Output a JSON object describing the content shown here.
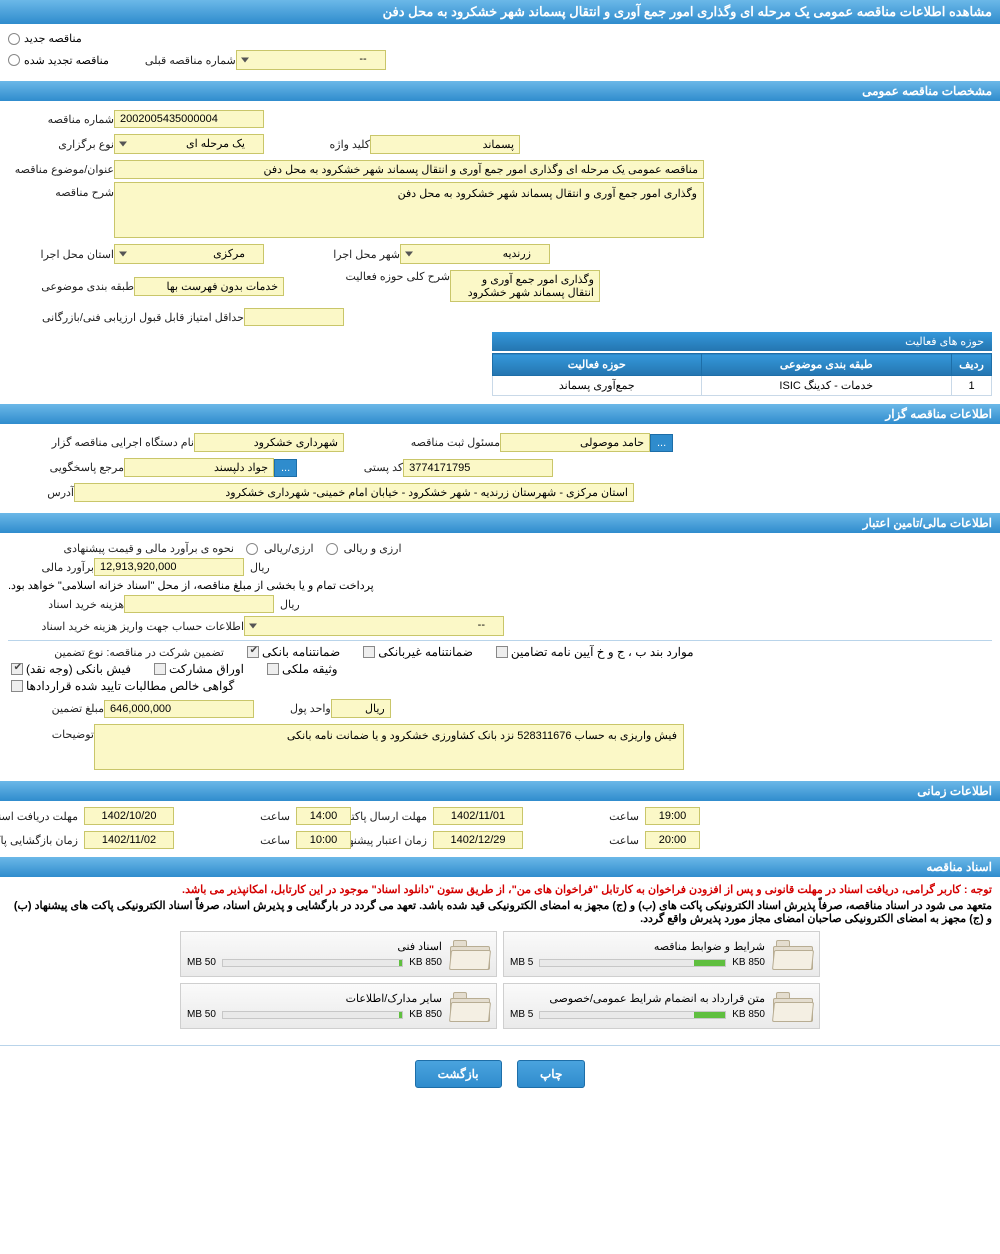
{
  "header": {
    "page_title": "مشاهده اطلاعات مناقصه عمومی یک مرحله ای وگذاری امور جمع آوری و انتقال پسماند شهر خشکرود به محل دفن"
  },
  "radios": {
    "new_tender": "مناقصه جدید",
    "renewed_tender": "مناقصه تجدید شده",
    "prev_number_label": "شماره مناقصه قبلی",
    "prev_number_value": "--"
  },
  "general": {
    "section_title": "مشخصات مناقصه عمومی",
    "tender_no_label": "شماره مناقصه",
    "tender_no": "2002005435000004",
    "type_label": "نوع برگزاری",
    "type_value": "یک مرحله ای",
    "keyword_label": "کلید واژه",
    "keyword_value": "پسماند",
    "subject_label": "عنوان/موضوع مناقصه",
    "subject_value": "مناقصه عمومی یک مرحله ای وگذاری امور جمع آوری و انتقال پسماند شهر خشکرود به محل دفن",
    "desc_label": "شرح مناقصه",
    "desc_value": "وگذاری امور جمع آوری و انتقال پسماند شهر خشکرود به محل دفن",
    "province_label": "استان محل اجرا",
    "province_value": "مرکزی",
    "city_label": "شهر محل اجرا",
    "city_value": "زرندیه",
    "category_label": "طبقه بندی موضوعی",
    "category_value": "خدمات بدون فهرست بها",
    "scope_desc_label": "شرح کلی حوزه فعالیت",
    "scope_desc_value": "وگذاری امور جمع آوری و انتقال پسماند شهر خشکرود",
    "min_score_label": "حداقل امتیاز قابل قبول ارزیابی فنی/بازرگانی",
    "activity_table": {
      "caption": "حوزه های فعالیت",
      "col_row": "ردیف",
      "col_cat": "طبقه بندی موضوعی",
      "col_scope": "حوزه فعالیت",
      "rows": [
        {
          "n": "1",
          "cat": "خدمات - کدینگ ISIC",
          "scope": "جمع‌آوری پسماند"
        }
      ]
    }
  },
  "organizer": {
    "section_title": "اطلاعات مناقصه گزار",
    "org_label": "نام دستگاه اجرایی مناقصه گزار",
    "org_value": "شهرداری خشکرود",
    "reg_label": "مسئول ثبت مناقصه",
    "reg_value": "حامد موصولی",
    "contact_label": "مرجع پاسخگویی",
    "contact_value": "جواد دلپسند",
    "postal_label": "کد پستی",
    "postal_value": "3774171795",
    "address_label": "آدرس",
    "address_value": "استان مرکزی - شهرستان زرندیه - شهر خشکرود - خیابان امام خمینی- شهرداری خشکرود",
    "more_btn": "..."
  },
  "finance": {
    "section_title": "اطلاعات مالی/تامین اعتبار",
    "estimate_type_label": "نحوه ی برآورد مالی و قیمت پیشنهادی",
    "opt1": "ارزی/ریالی",
    "opt2": "ارزی و ریالی",
    "estimate_label": "برآورد مالی",
    "estimate_value": "12,913,920,000",
    "rial": "ریال",
    "treasury_note": "پرداخت تمام و یا بخشی از مبلغ مناقصه، از محل \"اسناد خزانه اسلامی\" خواهد بود.",
    "doc_cost_label": "هزینه خرید اسناد",
    "account_info_label": "اطلاعات حساب جهت واریز هزینه خرید اسناد",
    "account_info_value": "--",
    "guarantee_label": "تضمین شرکت در مناقصه:   نوع تضمین",
    "guarantee_opts": {
      "bank": "ضمانتنامه بانکی",
      "nonbank": "ضمانتنامه غیربانکی",
      "ayin": "موارد بند ب ، ج و خ آیین نامه تضامین",
      "cash": "فیش بانکی (وجه نقد)",
      "bonds": "اوراق مشارکت",
      "property": "وثیقه ملکی",
      "cert": "گواهی خالص مطالبات تایید شده قراردادها"
    },
    "guarantee_amount_label": "مبلغ تضمین",
    "guarantee_amount": "646,000,000",
    "currency_unit_label": "واحد پول",
    "currency_unit": "ریال",
    "notes_label": "توضیحات",
    "notes_value": "فیش واریزی به حساب 528311676 نزد بانک کشاورزی خشکرود و  یا ضمانت نامه بانکی"
  },
  "timing": {
    "section_title": "اطلاعات زمانی",
    "receive_label": "مهلت دریافت اسناد",
    "receive_date": "1402/10/20",
    "receive_time_label": "ساعت",
    "receive_time": "14:00",
    "send_label": "مهلت ارسال پاکتهای پیشنهاد",
    "send_date": "1402/11/01",
    "send_time": "19:00",
    "open_label": "زمان بازگشایی پاکت ها",
    "open_date": "1402/11/02",
    "open_time": "10:00",
    "valid_label": "زمان اعتبار پیشنهاد",
    "valid_date": "1402/12/29",
    "valid_time": "20:00"
  },
  "documents": {
    "section_title": "اسناد مناقصه",
    "red_note": "توجه : کاربر گرامی، دریافت اسناد در مهلت قانونی و پس از افزودن فراخوان به کارتابل \"فراخوان های من\"، از طریق ستون \"دانلود اسناد\" موجود در این کارتابل، امکانپذیر می باشد.",
    "bold_note": "متعهد می شود در اسناد مناقصه، صرفاً پذیرش اسناد الکترونیکی پاکت های (ب) و (ج) مجهز به امضای الکترونیکی قید شده باشد. تعهد می گردد در بارگشایی و پذیرش اسناد، صرفاً اسناد الکترونیکی پاکت های پیشنهاد (ب) و (ج) مجهز به امضای الکترونیکی صاحبان امضای مجاز مورد پذیرش واقع گردد.",
    "files": [
      {
        "title": "شرایط و ضوابط مناقصه",
        "used": "850 KB",
        "cap": "5 MB",
        "pct": 17
      },
      {
        "title": "اسناد فنی",
        "used": "850 KB",
        "cap": "50 MB",
        "pct": 2
      },
      {
        "title": "متن قرارداد به انضمام شرایط عمومی/خصوصی",
        "used": "850 KB",
        "cap": "5 MB",
        "pct": 17
      },
      {
        "title": "سایر مدارک/اطلاعات",
        "used": "850 KB",
        "cap": "50 MB",
        "pct": 2
      }
    ]
  },
  "buttons": {
    "print": "چاپ",
    "back": "بازگشت"
  }
}
